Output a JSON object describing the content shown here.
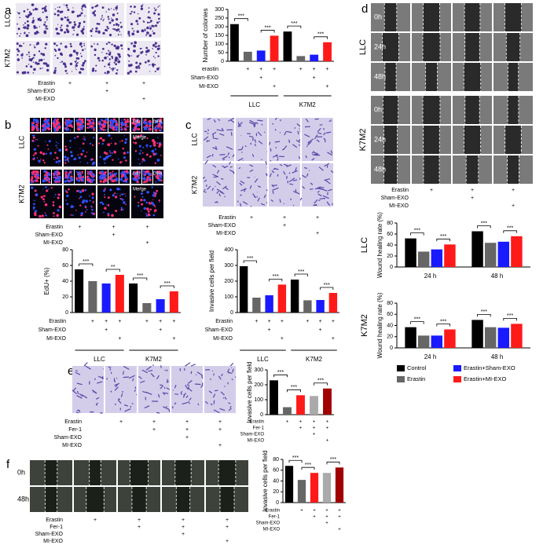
{
  "figure": {
    "panels": [
      {
        "letter": "a",
        "row_labels": [
          "LLC",
          "K7M2"
        ],
        "treatments": [
          {
            "name": "Erastin",
            "marks": [
              null,
              "+",
              "+",
              "+"
            ]
          },
          {
            "name": "Sham-EXO",
            "marks": [
              null,
              null,
              "+",
              null
            ]
          },
          {
            "name": "MI-EXO",
            "marks": [
              null,
              null,
              null,
              "+"
            ]
          }
        ]
      },
      {
        "letter": "b",
        "row_labels": [
          "LLC",
          "K7M2"
        ],
        "image_labels": [
          "EdU",
          "DIPA",
          "Merge"
        ],
        "treatments": [
          {
            "name": "Erastin",
            "marks": [
              null,
              "+",
              "+",
              "+"
            ]
          },
          {
            "name": "Sham-EXO",
            "marks": [
              null,
              null,
              "+",
              null
            ]
          },
          {
            "name": "MI-EXO",
            "marks": [
              null,
              null,
              null,
              "+"
            ]
          }
        ]
      },
      {
        "letter": "c",
        "row_labels": [
          "LLC",
          "K7M2"
        ],
        "treatments": [
          {
            "name": "Erastin",
            "marks": [
              null,
              "+",
              "+",
              "+"
            ]
          },
          {
            "name": "Sham-EXO",
            "marks": [
              null,
              null,
              "+",
              null
            ]
          },
          {
            "name": "MI-EXO",
            "marks": [
              null,
              null,
              null,
              "+"
            ]
          }
        ]
      },
      {
        "letter": "d",
        "row_labels": [
          "LLC",
          "K7M2"
        ],
        "time_labels": [
          "0h",
          "24h",
          "48h"
        ],
        "treatments": [
          {
            "name": "Erastin",
            "marks": [
              null,
              "+",
              "+",
              "+"
            ]
          },
          {
            "name": "Sham-EXO",
            "marks": [
              null,
              null,
              "+",
              null
            ]
          },
          {
            "name": "MI-EXO",
            "marks": [
              null,
              null,
              null,
              "+"
            ]
          }
        ]
      },
      {
        "letter": "e",
        "treatments": [
          {
            "name": "Erastin",
            "marks": [
              null,
              "+",
              "+",
              "+",
              "+"
            ]
          },
          {
            "name": "Fer-1",
            "marks": [
              null,
              null,
              "+",
              "+",
              "+"
            ]
          },
          {
            "name": "Sham-EXO",
            "marks": [
              null,
              null,
              null,
              "+",
              null
            ]
          },
          {
            "name": "MI-EXO",
            "marks": [
              null,
              null,
              null,
              null,
              "+"
            ]
          }
        ]
      },
      {
        "letter": "f",
        "time_labels": [
          "0h",
          "48h"
        ],
        "treatments": [
          {
            "name": "Erastin",
            "marks": [
              null,
              "+",
              "+",
              "+",
              "+"
            ]
          },
          {
            "name": "Fer-1",
            "marks": [
              null,
              null,
              "+",
              "+",
              "+"
            ]
          },
          {
            "name": "Sham-EXO",
            "marks": [
              null,
              null,
              null,
              "+",
              null
            ]
          },
          {
            "name": "MI-EXO",
            "marks": [
              null,
              null,
              null,
              null,
              "+"
            ]
          }
        ]
      }
    ]
  },
  "chart_data": [
    {
      "type": "bar",
      "ylabel": "Number of colonies",
      "values": [
        215,
        55,
        62,
        148,
        172,
        30,
        38,
        110
      ],
      "colors": [
        "#000000",
        "#666666",
        "#1a1aff",
        "#ff1a1a",
        "#000000",
        "#666666",
        "#1a1aff",
        "#ff1a1a"
      ],
      "ylim": [
        0,
        300
      ],
      "yticks": [
        0,
        50,
        100,
        150,
        200,
        250,
        300
      ],
      "annotations": [
        "***",
        "***",
        "***",
        "***"
      ],
      "treatments": [
        {
          "name": "erastin",
          "marks": [
            null,
            "+",
            "+",
            "+",
            null,
            "+",
            "+",
            "+"
          ]
        },
        {
          "name": "Sham-EXO",
          "marks": [
            null,
            null,
            "+",
            null,
            null,
            null,
            "+",
            null
          ]
        },
        {
          "name": "MI-EXO",
          "marks": [
            null,
            null,
            null,
            "+",
            null,
            null,
            null,
            "+"
          ]
        }
      ],
      "groups": [
        "LLC",
        "K7M2"
      ]
    },
    {
      "type": "bar",
      "ylabel": "EdU+ (%)",
      "values": [
        55,
        40,
        37,
        48,
        37,
        12,
        17,
        27
      ],
      "colors": [
        "#000000",
        "#666666",
        "#1a1aff",
        "#ff1a1a",
        "#000000",
        "#666666",
        "#1a1aff",
        "#ff1a1a"
      ],
      "ylim": [
        0,
        80
      ],
      "yticks": [
        0,
        20,
        40,
        60,
        80
      ],
      "annotations": [
        "***",
        "**",
        "***",
        "***"
      ],
      "treatments": [
        {
          "name": "Erastin",
          "marks": [
            null,
            "+",
            "+",
            "+",
            null,
            "+",
            "+",
            "+"
          ]
        },
        {
          "name": "Sham-EXO",
          "marks": [
            null,
            null,
            "+",
            null,
            null,
            null,
            "+",
            null
          ]
        },
        {
          "name": "MI-EXO",
          "marks": [
            null,
            null,
            null,
            "+",
            null,
            null,
            null,
            "+"
          ]
        }
      ],
      "groups": [
        "LLC",
        "K7M2"
      ]
    },
    {
      "type": "bar",
      "ylabel": "Invasive cells per field",
      "values": [
        295,
        95,
        110,
        178,
        210,
        78,
        80,
        125
      ],
      "colors": [
        "#000000",
        "#666666",
        "#1a1aff",
        "#ff1a1a",
        "#000000",
        "#666666",
        "#1a1aff",
        "#ff1a1a"
      ],
      "ylim": [
        0,
        400
      ],
      "yticks": [
        0,
        100,
        200,
        300,
        400
      ],
      "annotations": [
        "***",
        "***",
        "***",
        "***"
      ],
      "treatments": [
        {
          "name": "Erastin",
          "marks": [
            null,
            "+",
            "+",
            "+",
            null,
            "+",
            "+",
            "+"
          ]
        },
        {
          "name": "Sham-EXO",
          "marks": [
            null,
            null,
            "+",
            null,
            null,
            null,
            "+",
            null
          ]
        },
        {
          "name": "MI-EXO",
          "marks": [
            null,
            null,
            null,
            "+",
            null,
            null,
            null,
            "+"
          ]
        }
      ],
      "groups": [
        "LLC",
        "K7M2"
      ]
    },
    {
      "type": "grouped-bar",
      "title": "LLC",
      "ylabel": "Wound healing rate (%)",
      "categories": [
        "24 h",
        "48 h"
      ],
      "series": [
        {
          "color": "#000000",
          "values": [
            52,
            65
          ]
        },
        {
          "color": "#666666",
          "values": [
            28,
            44
          ]
        },
        {
          "color": "#1a1aff",
          "values": [
            32,
            46
          ]
        },
        {
          "color": "#ff1a1a",
          "values": [
            41,
            56
          ]
        }
      ],
      "ylim": [
        0,
        80
      ],
      "yticks": [
        0,
        20,
        40,
        60,
        80
      ],
      "annotations": [
        "***",
        "***",
        "***",
        "***"
      ]
    },
    {
      "type": "grouped-bar",
      "title": "K7M2",
      "ylabel": "Wound healing rate (%)",
      "categories": [
        "24 h",
        "48 h"
      ],
      "series": [
        {
          "name": "Control",
          "color": "#000000",
          "values": [
            37,
            50
          ]
        },
        {
          "name": "Erastin",
          "color": "#666666",
          "values": [
            22,
            37
          ]
        },
        {
          "name": "Erastin+Sham-EXO",
          "color": "#1a1aff",
          "values": [
            22,
            36
          ]
        },
        {
          "name": "Erastin+MI-EXO",
          "color": "#ff1a1a",
          "values": [
            33,
            43
          ]
        }
      ],
      "ylim": [
        0,
        80
      ],
      "yticks": [
        0,
        20,
        40,
        60,
        80
      ],
      "annotations": [
        "***",
        "***",
        "***",
        "***"
      ],
      "legend": "bottom"
    },
    {
      "type": "bar",
      "ylabel": "Invasive cells per field",
      "values": [
        230,
        50,
        130,
        125,
        175
      ],
      "colors": [
        "#000000",
        "#666666",
        "#ff1a1a",
        "#aaaaaa",
        "#a00000"
      ],
      "ylim": [
        0,
        300
      ],
      "yticks": [
        0,
        100,
        200,
        300
      ],
      "annotations": [
        "***",
        "***",
        "***"
      ],
      "treatments": [
        {
          "name": "Erastin",
          "marks": [
            null,
            "+",
            "+",
            "+",
            "+"
          ]
        },
        {
          "name": "Fer-1",
          "marks": [
            null,
            null,
            "+",
            "+",
            "+"
          ]
        },
        {
          "name": "Sham-EXO",
          "marks": [
            null,
            null,
            null,
            "+",
            null
          ]
        },
        {
          "name": "MI-EXO",
          "marks": [
            null,
            null,
            null,
            null,
            "+"
          ]
        }
      ]
    },
    {
      "type": "bar",
      "ylabel": "Invasive cells per field",
      "values": [
        68,
        42,
        55,
        55,
        65
      ],
      "colors": [
        "#000000",
        "#666666",
        "#ff1a1a",
        "#aaaaaa",
        "#a00000"
      ],
      "ylim": [
        0,
        80
      ],
      "yticks": [
        0,
        20,
        40,
        60,
        80
      ],
      "annotations": [
        "***",
        "***",
        "***"
      ],
      "treatments": [
        {
          "name": "Erastin",
          "marks": [
            null,
            "+",
            "+",
            "+",
            "+"
          ]
        },
        {
          "name": "Fer-1",
          "marks": [
            null,
            null,
            "+",
            "+",
            "+"
          ]
        },
        {
          "name": "Sham-EXO",
          "marks": [
            null,
            null,
            null,
            "+",
            null
          ]
        },
        {
          "name": "MI-EXO",
          "marks": [
            null,
            null,
            null,
            null,
            "+"
          ]
        }
      ]
    }
  ]
}
